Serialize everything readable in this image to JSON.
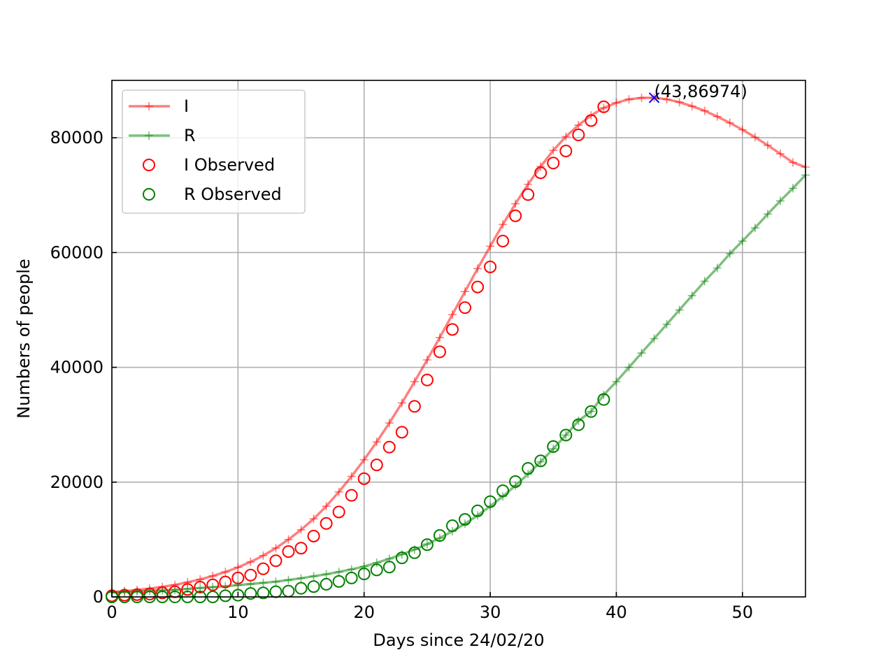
{
  "chart_data": {
    "type": "line",
    "title": "",
    "xlabel": "Days since 24/02/20",
    "ylabel": "Numbers of people",
    "xlim": [
      0,
      55
    ],
    "ylim": [
      0,
      90000
    ],
    "xticks": [
      0,
      10,
      20,
      30,
      40,
      50
    ],
    "yticks": [
      0,
      20000,
      40000,
      60000,
      80000
    ],
    "grid": true,
    "legend_position": "top-left",
    "series": [
      {
        "name": "I",
        "style": "line-plus",
        "color": "#ff0000",
        "x": [
          0,
          1,
          2,
          3,
          4,
          5,
          6,
          7,
          8,
          9,
          10,
          11,
          12,
          13,
          14,
          15,
          16,
          17,
          18,
          19,
          20,
          21,
          22,
          23,
          24,
          25,
          26,
          27,
          28,
          29,
          30,
          31,
          32,
          33,
          34,
          35,
          36,
          37,
          38,
          39,
          40,
          41,
          42,
          43,
          44,
          45,
          46,
          47,
          48,
          49,
          50,
          51,
          52,
          53,
          54,
          55
        ],
        "values": [
          800,
          1000,
          1200,
          1450,
          1750,
          2100,
          2550,
          3050,
          3650,
          4350,
          5150,
          6100,
          7200,
          8500,
          10000,
          11700,
          13600,
          15800,
          18300,
          21000,
          23900,
          27000,
          30300,
          33800,
          37500,
          41300,
          45200,
          49200,
          53200,
          57200,
          61100,
          64900,
          68500,
          71900,
          75000,
          77800,
          80200,
          82200,
          83900,
          85200,
          86100,
          86700,
          86950,
          86974,
          86700,
          86200,
          85500,
          84700,
          83700,
          82600,
          81400,
          80100,
          78700,
          77200,
          75700,
          74900
        ]
      },
      {
        "name": "R",
        "style": "line-plus",
        "color": "#008000",
        "x": [
          0,
          1,
          2,
          3,
          4,
          5,
          6,
          7,
          8,
          9,
          10,
          11,
          12,
          13,
          14,
          15,
          16,
          17,
          18,
          19,
          20,
          21,
          22,
          23,
          24,
          25,
          26,
          27,
          28,
          29,
          30,
          31,
          32,
          33,
          34,
          35,
          36,
          37,
          38,
          39,
          40,
          41,
          42,
          43,
          44,
          45,
          46,
          47,
          48,
          49,
          50,
          51,
          52,
          53,
          54,
          55
        ],
        "values": [
          800,
          850,
          950,
          1050,
          1150,
          1250,
          1400,
          1550,
          1700,
          1850,
          2050,
          2250,
          2450,
          2650,
          2950,
          3250,
          3600,
          3950,
          4350,
          4800,
          5300,
          5950,
          6650,
          7400,
          8250,
          9200,
          10250,
          11450,
          12750,
          14200,
          15800,
          17500,
          19400,
          21400,
          23550,
          25800,
          28200,
          30700,
          32300,
          35200,
          37500,
          40000,
          42500,
          45000,
          47500,
          50000,
          52500,
          55000,
          57300,
          59800,
          62000,
          64300,
          66700,
          69000,
          71200,
          73500
        ]
      },
      {
        "name": "I Observed",
        "style": "circle",
        "color": "#ff0000",
        "x": [
          0,
          1,
          2,
          3,
          4,
          5,
          6,
          7,
          8,
          9,
          10,
          11,
          12,
          13,
          14,
          15,
          16,
          17,
          18,
          19,
          20,
          21,
          22,
          23,
          24,
          25,
          26,
          27,
          28,
          29,
          30,
          31,
          32,
          33,
          34,
          35,
          36,
          37,
          38,
          39
        ],
        "values": [
          200,
          300,
          400,
          500,
          700,
          900,
          1300,
          1700,
          2100,
          2600,
          3300,
          3800,
          4900,
          6300,
          7900,
          8500,
          10600,
          12800,
          14800,
          17700,
          20600,
          23000,
          26100,
          28700,
          33200,
          37800,
          42700,
          46600,
          50400,
          54000,
          57500,
          62000,
          66400,
          70100,
          73900,
          75600,
          77700,
          80500,
          83000,
          85400
        ]
      },
      {
        "name": "R Observed",
        "style": "circle",
        "color": "#008000",
        "x": [
          0,
          1,
          2,
          3,
          4,
          5,
          6,
          7,
          8,
          9,
          10,
          11,
          12,
          13,
          14,
          15,
          16,
          17,
          18,
          19,
          20,
          21,
          22,
          23,
          24,
          25,
          26,
          27,
          28,
          29,
          30,
          31,
          32,
          33,
          34,
          35,
          36,
          37,
          38,
          39
        ],
        "values": [
          0,
          0,
          0,
          0,
          0,
          0,
          0,
          0,
          0,
          200,
          300,
          600,
          700,
          900,
          1000,
          1500,
          1800,
          2200,
          2700,
          3300,
          4000,
          4700,
          5200,
          6800,
          7700,
          9100,
          10700,
          12400,
          13500,
          15000,
          16600,
          18500,
          20100,
          22400,
          23700,
          26200,
          28200,
          30000,
          32300,
          34400
        ]
      }
    ],
    "annotations": [
      {
        "x": 43,
        "y": 86974,
        "label": "(43,86974)",
        "marker": "x",
        "color": "#0000ff"
      }
    ]
  }
}
